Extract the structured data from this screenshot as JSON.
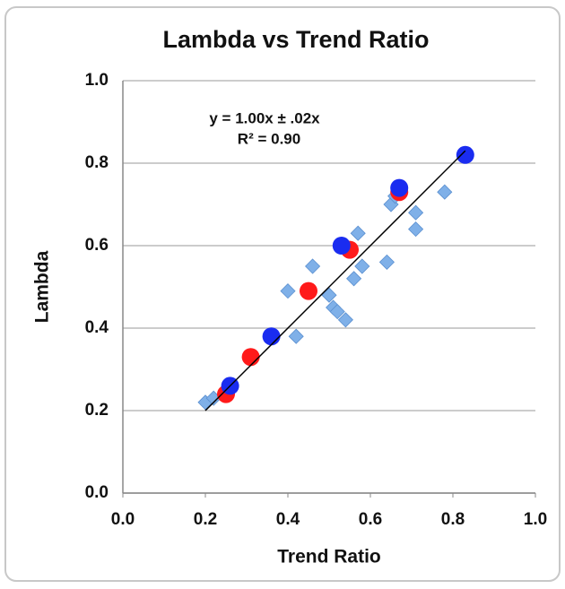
{
  "chart_data": {
    "type": "scatter",
    "title": "Lambda vs Trend Ratio",
    "x_label": "Trend Ratio",
    "y_label": "Lambda",
    "annotations": [
      "y = 1.00x ± .02x",
      "R² = 0.90"
    ],
    "xlim": [
      0,
      1
    ],
    "ylim": [
      0,
      1
    ],
    "xticks": [
      {
        "value": 0,
        "label": "0.0"
      },
      {
        "value": 0.2,
        "label": "0.2"
      },
      {
        "value": 0.4,
        "label": "0.4"
      },
      {
        "value": 0.6,
        "label": "0.6"
      },
      {
        "value": 0.8,
        "label": "0.8"
      },
      {
        "value": 1,
        "label": "1.0"
      }
    ],
    "yticks": [
      {
        "value": 0,
        "label": "0.0"
      },
      {
        "value": 0.2,
        "label": "0.2"
      },
      {
        "value": 0.4,
        "label": "0.4"
      },
      {
        "value": 0.6,
        "label": "0.6"
      },
      {
        "value": 0.8,
        "label": "0.8"
      },
      {
        "value": 1,
        "label": "1.0"
      }
    ],
    "grid": true,
    "series": [
      {
        "color": "#7fb0e8",
        "marker": "diamond",
        "x": [
          0.2,
          0.22,
          0.4,
          0.42,
          0.46,
          0.5,
          0.51,
          0.52,
          0.54,
          0.53,
          0.56,
          0.57,
          0.58,
          0.64,
          0.65,
          0.71,
          0.71,
          0.78,
          0.66
        ],
        "values": [
          0.22,
          0.23,
          0.49,
          0.38,
          0.55,
          0.48,
          0.45,
          0.44,
          0.42,
          0.6,
          0.52,
          0.63,
          0.55,
          0.56,
          0.7,
          0.68,
          0.64,
          0.73,
          0.72
        ]
      },
      {
        "color": "#ff1a1a",
        "marker": "circle",
        "x": [
          0.25,
          0.31,
          0.45,
          0.55,
          0.67
        ],
        "values": [
          0.24,
          0.33,
          0.49,
          0.59,
          0.73
        ]
      },
      {
        "color": "#1a2cf0",
        "marker": "circle",
        "x": [
          0.26,
          0.36,
          0.53,
          0.67,
          0.83
        ],
        "values": [
          0.26,
          0.38,
          0.6,
          0.74,
          0.82
        ]
      }
    ],
    "trendline": {
      "color": "#000000",
      "x": [
        0.2,
        0.83
      ],
      "values": [
        0.2,
        0.83
      ]
    }
  }
}
